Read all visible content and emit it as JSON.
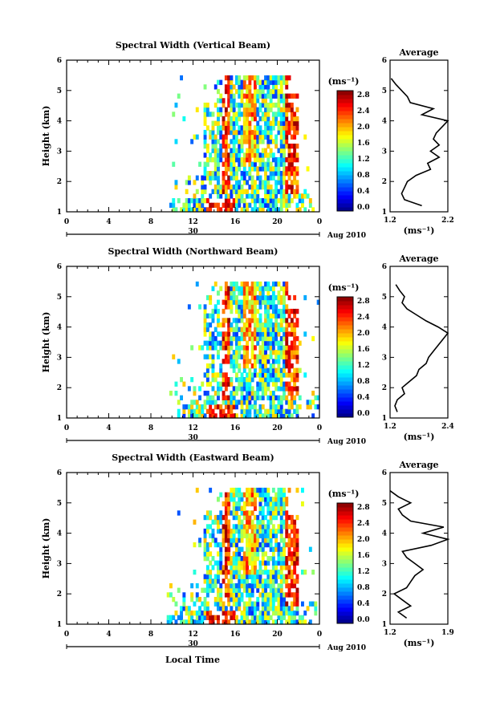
{
  "figure": {
    "xlabel": "Local Time",
    "date_day": "30",
    "date_month": "Aug 2010",
    "colorbar_unit": "(ms⁻¹)",
    "avg_title": "Average",
    "avg_unit": "(ms⁻¹)"
  },
  "chart_data": [
    {
      "type": "heatmap",
      "title": "Spectral Width (Vertical Beam)",
      "ylabel": "Height (km)",
      "xlim": [
        0,
        24
      ],
      "ylim": [
        1,
        6
      ],
      "x_ticks": [
        "0",
        "4",
        "8",
        "12",
        "16",
        "20",
        "0"
      ],
      "y_ticks": [
        "1",
        "2",
        "3",
        "4",
        "5",
        "6"
      ],
      "colorbar": {
        "range": [
          0.0,
          3.0
        ],
        "ticks": [
          "0.0",
          "0.4",
          "0.8",
          "1.2",
          "1.6",
          "2.0",
          "2.4",
          "2.8"
        ]
      },
      "data_extent": {
        "start_hour": 9.5,
        "end_hour": 23.5,
        "max_height_km": 5.5
      },
      "profile": {
        "title": "Average",
        "xlim": [
          1.2,
          2.2
        ],
        "x_ticks": [
          "1.2",
          "2.2"
        ],
        "heights": [
          1.2,
          1.4,
          1.6,
          1.8,
          2.0,
          2.2,
          2.4,
          2.6,
          2.8,
          3.0,
          3.2,
          3.4,
          3.6,
          3.8,
          4.0,
          4.2,
          4.4,
          4.6,
          4.8,
          5.0,
          5.2,
          5.4
        ],
        "values": [
          1.75,
          1.45,
          1.4,
          1.45,
          1.5,
          1.65,
          1.9,
          1.85,
          2.05,
          1.9,
          2.05,
          1.95,
          2.0,
          2.1,
          2.2,
          1.75,
          1.95,
          1.55,
          1.5,
          1.4,
          1.3,
          1.22
        ]
      }
    },
    {
      "type": "heatmap",
      "title": "Spectral Width (Northward Beam)",
      "ylabel": "Height (km)",
      "xlim": [
        0,
        24
      ],
      "ylim": [
        1,
        6
      ],
      "x_ticks": [
        "0",
        "4",
        "8",
        "12",
        "16",
        "20",
        "0"
      ],
      "y_ticks": [
        "1",
        "2",
        "3",
        "4",
        "5",
        "6"
      ],
      "colorbar": {
        "range": [
          0.0,
          3.0
        ],
        "ticks": [
          "0.0",
          "0.4",
          "0.8",
          "1.2",
          "1.6",
          "2.0",
          "2.4",
          "2.8"
        ]
      },
      "data_extent": {
        "start_hour": 9.5,
        "end_hour": 24.0,
        "max_height_km": 5.5
      },
      "profile": {
        "title": "Average",
        "xlim": [
          1.2,
          2.4
        ],
        "x_ticks": [
          "1.2",
          "2.4"
        ],
        "heights": [
          1.2,
          1.4,
          1.6,
          1.8,
          2.0,
          2.2,
          2.4,
          2.6,
          2.8,
          3.0,
          3.2,
          3.4,
          3.6,
          3.8,
          4.0,
          4.2,
          4.4,
          4.6,
          4.8,
          5.0,
          5.2,
          5.4
        ],
        "values": [
          1.35,
          1.3,
          1.35,
          1.5,
          1.45,
          1.6,
          1.75,
          1.8,
          1.95,
          2.0,
          2.1,
          2.2,
          2.3,
          2.4,
          2.2,
          1.95,
          1.75,
          1.55,
          1.45,
          1.5,
          1.4,
          1.32
        ]
      }
    },
    {
      "type": "heatmap",
      "title": "Spectral Width (Eastward Beam)",
      "ylabel": "Height (km)",
      "xlim": [
        0,
        24
      ],
      "ylim": [
        1,
        6
      ],
      "x_ticks": [
        "0",
        "4",
        "8",
        "12",
        "16",
        "20",
        "0"
      ],
      "y_ticks": [
        "1",
        "2",
        "3",
        "4",
        "5",
        "6"
      ],
      "colorbar": {
        "range": [
          0.0,
          3.0
        ],
        "ticks": [
          "0.0",
          "0.4",
          "0.8",
          "1.2",
          "1.6",
          "2.0",
          "2.4",
          "2.8"
        ]
      },
      "data_extent": {
        "start_hour": 9.5,
        "end_hour": 24.0,
        "max_height_km": 5.5
      },
      "profile": {
        "title": "Average",
        "xlim": [
          1.2,
          1.9
        ],
        "x_ticks": [
          "1.2",
          "1.9"
        ],
        "heights": [
          1.2,
          1.4,
          1.6,
          1.8,
          2.0,
          2.2,
          2.4,
          2.6,
          2.8,
          3.0,
          3.2,
          3.4,
          3.6,
          3.8,
          4.0,
          4.2,
          4.4,
          4.6,
          4.8,
          5.0,
          5.2,
          5.4
        ],
        "values": [
          1.4,
          1.3,
          1.45,
          1.35,
          1.25,
          1.4,
          1.45,
          1.5,
          1.6,
          1.5,
          1.4,
          1.35,
          1.7,
          1.9,
          1.6,
          1.85,
          1.45,
          1.35,
          1.3,
          1.45,
          1.3,
          1.2
        ]
      }
    }
  ]
}
